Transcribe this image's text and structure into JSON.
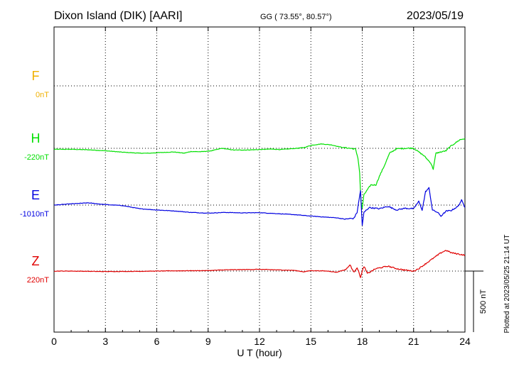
{
  "header": {
    "station": "Dixon Island (DIK)  [AARI]",
    "coords": "GG ( 73.55°,  80.57°)",
    "date": "2023/05/19"
  },
  "footer": {
    "plotted": "Plotted at 2023/05/25 21:14 UT",
    "scale_label": "500 nT"
  },
  "chart_data": {
    "type": "line",
    "title": "Dixon Island (DIK)  [AARI]",
    "xlabel": "U T (hour)",
    "ylabel": "",
    "xlim": [
      0,
      24
    ],
    "x_ticks": [
      "0",
      "3",
      "6",
      "9",
      "12",
      "15",
      "18",
      "21",
      "24"
    ],
    "grid": true,
    "scale_bar_nT": 500,
    "series": [
      {
        "name": "F",
        "baseline": "0nT",
        "color": "#f0b000",
        "points": []
      },
      {
        "name": "H",
        "baseline": "-220nT",
        "color": "#00e000",
        "points": [
          [
            0,
            -8
          ],
          [
            1,
            -8
          ],
          [
            2,
            -12
          ],
          [
            3,
            -20
          ],
          [
            4,
            -32
          ],
          [
            5,
            -40
          ],
          [
            5.6,
            -40
          ],
          [
            6,
            -36
          ],
          [
            7,
            -30
          ],
          [
            7.6,
            -40
          ],
          [
            8,
            -26
          ],
          [
            8.6,
            -28
          ],
          [
            9.2,
            -20
          ],
          [
            9.8,
            0
          ],
          [
            10.5,
            -14
          ],
          [
            11.2,
            -14
          ],
          [
            12,
            -10
          ],
          [
            12.7,
            -6
          ],
          [
            13.2,
            -10
          ],
          [
            14,
            -2
          ],
          [
            14.6,
            6
          ],
          [
            15,
            24
          ],
          [
            15.6,
            36
          ],
          [
            16.2,
            28
          ],
          [
            16.8,
            8
          ],
          [
            17.3,
            0
          ],
          [
            17.6,
            -6
          ],
          [
            17.75,
            -80
          ],
          [
            17.85,
            -200
          ],
          [
            17.92,
            -430
          ],
          [
            18.0,
            -490
          ],
          [
            18.1,
            -380
          ],
          [
            18.3,
            -340
          ],
          [
            18.5,
            -300
          ],
          [
            18.8,
            -300
          ],
          [
            19.0,
            -230
          ],
          [
            19.3,
            -140
          ],
          [
            19.6,
            -40
          ],
          [
            20.0,
            -4
          ],
          [
            20.5,
            0
          ],
          [
            21.0,
            2
          ],
          [
            21.3,
            -30
          ],
          [
            21.6,
            -60
          ],
          [
            21.8,
            -90
          ],
          [
            22.0,
            -120
          ],
          [
            22.15,
            -170
          ],
          [
            22.3,
            -40
          ],
          [
            22.6,
            -30
          ],
          [
            22.9,
            -20
          ],
          [
            23.1,
            10
          ],
          [
            23.4,
            40
          ],
          [
            23.7,
            70
          ],
          [
            24,
            80
          ]
        ]
      },
      {
        "name": "E",
        "baseline": "-1010nT",
        "color": "#0000e0",
        "points": [
          [
            0,
            0
          ],
          [
            1,
            10
          ],
          [
            2,
            18
          ],
          [
            3,
            4
          ],
          [
            4,
            -4
          ],
          [
            5,
            -30
          ],
          [
            6,
            -40
          ],
          [
            7,
            -48
          ],
          [
            8,
            -60
          ],
          [
            9,
            -66
          ],
          [
            10,
            -60
          ],
          [
            11,
            -64
          ],
          [
            12,
            -62
          ],
          [
            13,
            -70
          ],
          [
            14,
            -78
          ],
          [
            15,
            -90
          ],
          [
            16,
            -100
          ],
          [
            16.5,
            -104
          ],
          [
            17,
            -116
          ],
          [
            17.3,
            -110
          ],
          [
            17.5,
            -110
          ],
          [
            17.7,
            -60
          ],
          [
            17.9,
            120
          ],
          [
            18.0,
            -170
          ],
          [
            18.1,
            -60
          ],
          [
            18.4,
            -20
          ],
          [
            19.0,
            -30
          ],
          [
            19.5,
            -10
          ],
          [
            20.0,
            -40
          ],
          [
            20.5,
            -26
          ],
          [
            21.0,
            -30
          ],
          [
            21.3,
            30
          ],
          [
            21.5,
            -40
          ],
          [
            21.7,
            110
          ],
          [
            21.9,
            140
          ],
          [
            22.1,
            -40
          ],
          [
            22.4,
            -60
          ],
          [
            22.6,
            -90
          ],
          [
            22.9,
            -50
          ],
          [
            23.2,
            -44
          ],
          [
            23.6,
            -10
          ],
          [
            23.8,
            40
          ],
          [
            24,
            -20
          ]
        ]
      },
      {
        "name": "Z",
        "baseline": "220nT",
        "color": "#e00000",
        "points": [
          [
            0,
            0
          ],
          [
            1,
            0
          ],
          [
            3,
            -4
          ],
          [
            5,
            -2
          ],
          [
            7,
            2
          ],
          [
            9,
            4
          ],
          [
            10,
            10
          ],
          [
            12,
            14
          ],
          [
            13,
            10
          ],
          [
            14,
            6
          ],
          [
            14.6,
            -6
          ],
          [
            15,
            4
          ],
          [
            16,
            0
          ],
          [
            16.5,
            -10
          ],
          [
            16.8,
            4
          ],
          [
            17.0,
            10
          ],
          [
            17.3,
            50
          ],
          [
            17.5,
            -10
          ],
          [
            17.7,
            30
          ],
          [
            17.9,
            -50
          ],
          [
            18.1,
            40
          ],
          [
            18.3,
            -20
          ],
          [
            18.8,
            20
          ],
          [
            19.5,
            40
          ],
          [
            20.0,
            20
          ],
          [
            20.5,
            8
          ],
          [
            21.0,
            0
          ],
          [
            21.3,
            20
          ],
          [
            21.6,
            50
          ],
          [
            22.0,
            90
          ],
          [
            22.3,
            120
          ],
          [
            22.6,
            150
          ],
          [
            22.9,
            170
          ],
          [
            23.2,
            150
          ],
          [
            23.6,
            140
          ],
          [
            24,
            130
          ]
        ]
      }
    ]
  }
}
